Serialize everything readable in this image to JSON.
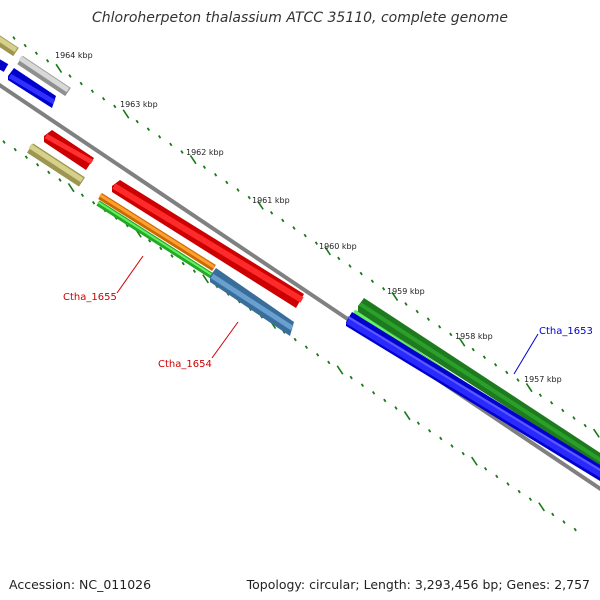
{
  "title": "Chloroherpeton thalassium ATCC 35110, complete genome",
  "footer": {
    "accession": "Accession: NC_011026",
    "summary": "Topology: circular; Length: 3,293,456 bp; Genes: 2,757"
  },
  "kbp_labels": [
    "1964 kbp",
    "1963 kbp",
    "1962 kbp",
    "1961 kbp",
    "1960 kbp",
    "1959 kbp",
    "1958 kbp",
    "1957 kbp"
  ],
  "gene_labels": {
    "ctha_1655": "Ctha_1655",
    "ctha_1654": "Ctha_1654",
    "ctha_1653": "Ctha_1653"
  },
  "colors": {
    "backbone": "#808080",
    "tick": "#1a7a1a",
    "red": "#ee0000",
    "blue": "#0000ee",
    "green": "#33cc33",
    "dark_green": "#228b22",
    "orange": "#ff8c00",
    "steel_blue": "#4682b4",
    "khaki": "#bdb76b",
    "gray": "#c0c0c0",
    "label_red": "#cc0000",
    "label_blue": "#0000cc"
  }
}
